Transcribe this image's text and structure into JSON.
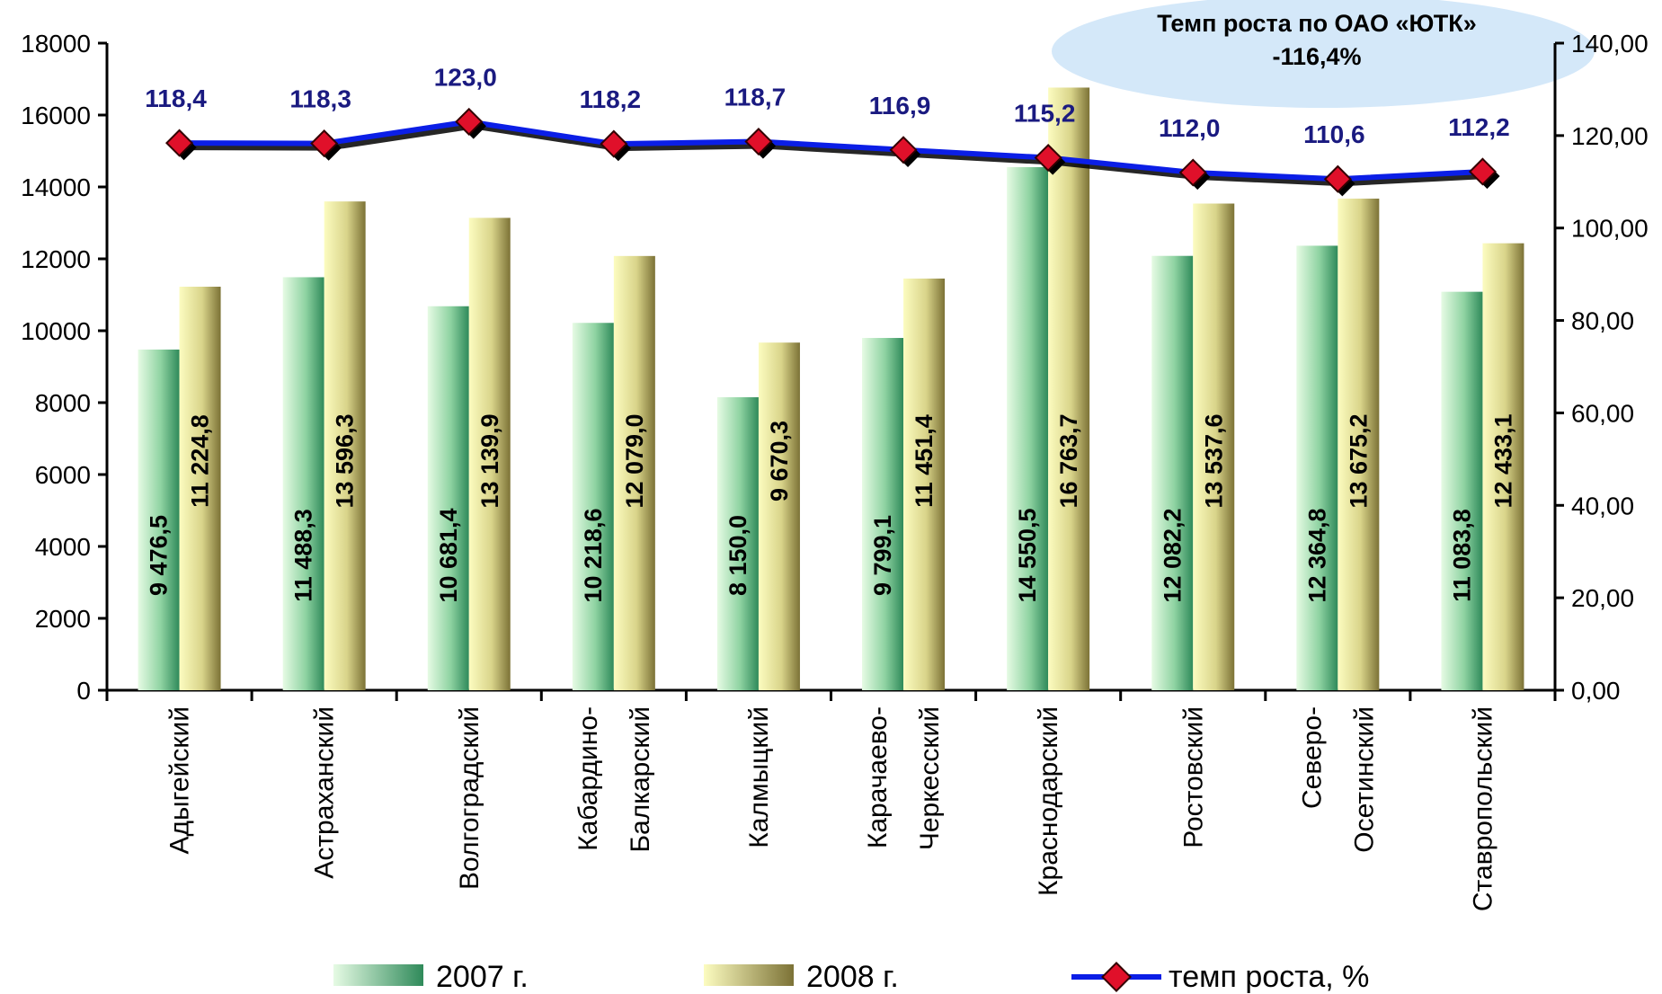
{
  "chart_data": {
    "type": "bar",
    "categories": [
      "Адыгейский",
      "Астраханский",
      "Волгоградский",
      "Кабардино-Балкарский",
      "Калмыцкий",
      "Карачаево-Черкесский",
      "Краснодарский",
      "Ростовский",
      "Северо-Осетинский",
      "Ставропольский"
    ],
    "category_lines": [
      [
        "Адыгейский"
      ],
      [
        "Астраханский"
      ],
      [
        "Волгоградский"
      ],
      [
        "Кабардино-",
        "Балкарский"
      ],
      [
        "Калмыцкий"
      ],
      [
        "Карачаево-",
        "Черкесский"
      ],
      [
        "Краснодарский"
      ],
      [
        "Ростовский"
      ],
      [
        "Северо-",
        "Осетинский"
      ],
      [
        "Ставропольский"
      ]
    ],
    "series": [
      {
        "name": "2007 г.",
        "type": "bar",
        "axis": "left",
        "values": [
          9476.5,
          11488.3,
          10681.4,
          10218.6,
          8150.0,
          9799.1,
          14550.5,
          12082.2,
          12364.8,
          11083.8
        ],
        "labels": [
          "9 476,5",
          "11 488,3",
          "10 681,4",
          "10 218,6",
          "8 150,0",
          "9 799,1",
          "14 550,5",
          "12 082,2",
          "12 364,8",
          "11 083,8"
        ]
      },
      {
        "name": "2008 г.",
        "type": "bar",
        "axis": "left",
        "values": [
          11224.8,
          13596.3,
          13139.9,
          12079.0,
          9670.3,
          11451.4,
          16763.7,
          13537.6,
          13675.2,
          12433.1
        ],
        "labels": [
          "11 224,8",
          "13 596,3",
          "13 139,9",
          "12 079,0",
          "9 670,3",
          "11 451,4",
          "16 763,7",
          "13 537,6",
          "13 675,2",
          "12 433,1"
        ]
      },
      {
        "name": "темп роста, %",
        "type": "line",
        "axis": "right",
        "values": [
          118.4,
          118.3,
          123.0,
          118.2,
          118.7,
          116.9,
          115.2,
          112.0,
          110.6,
          112.2
        ],
        "labels": [
          "118,4",
          "118,3",
          "123,0",
          "118,2",
          "118,7",
          "116,9",
          "115,2",
          "112,0",
          "110,6",
          "112,2"
        ]
      }
    ],
    "y_left": {
      "ylim": [
        0,
        18000
      ],
      "ticks": [
        "0",
        "2000",
        "4000",
        "6000",
        "8000",
        "10000",
        "12000",
        "14000",
        "16000",
        "18000"
      ]
    },
    "y_right": {
      "ylim": [
        0,
        140
      ],
      "ticks": [
        "0,00",
        "20,00",
        "40,00",
        "60,00",
        "80,00",
        "100,00",
        "120,00",
        "140,00"
      ]
    },
    "annotation": {
      "lines": [
        "Темп роста по ОАО «ЮТК»",
        "-116,4%"
      ],
      "fill": "#d4e8f9"
    },
    "legend": {
      "position": "bottom"
    },
    "colors": {
      "bar_2007_light": "#e6fbe4",
      "bar_2007_dark": "#2f8a5a",
      "bar_2008_light": "#fcfcc0",
      "bar_2008_dark": "#7c7236",
      "line": "#0b1ee6",
      "marker": "#e0102a",
      "rate_label": "#1a1a80"
    }
  }
}
